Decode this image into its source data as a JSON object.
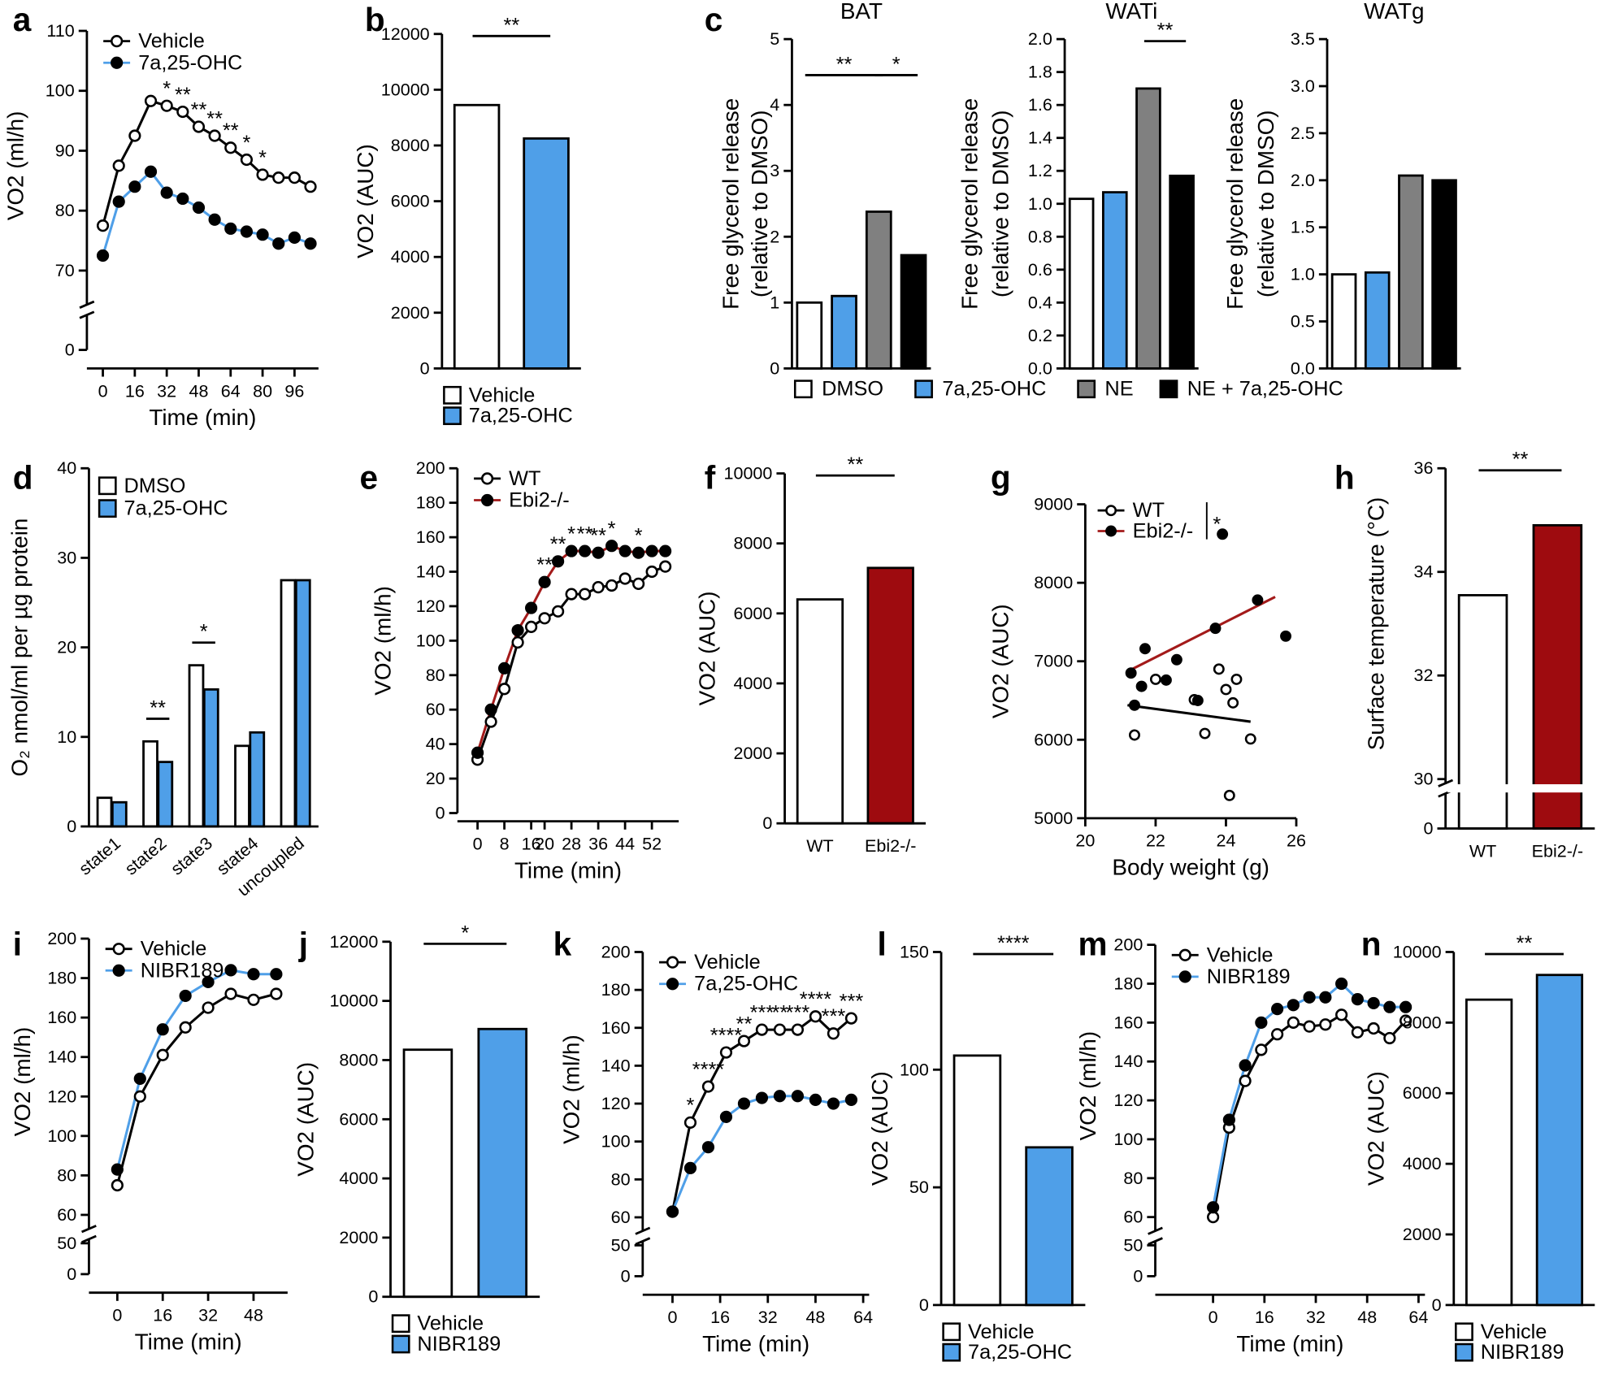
{
  "chart_data": [
    {
      "panel": "a",
      "type": "line",
      "xlabel": "Time (min)",
      "ylabel": "VO2 (ml/h)",
      "x": [
        0,
        8,
        16,
        24,
        32,
        40,
        48,
        56,
        64,
        72,
        80,
        88,
        96,
        104
      ],
      "xlim": [
        -8,
        108
      ],
      "xticks": [
        0,
        16,
        32,
        48,
        64,
        80,
        96
      ],
      "ylim": [
        65,
        110
      ],
      "yticks": [
        0,
        70,
        80,
        90,
        100,
        110
      ],
      "axis_break": true,
      "legend": "top-left",
      "series": [
        {
          "name": "Vehicle",
          "color": "#000000",
          "marker_color": "#ffffff",
          "values": [
            77.5,
            87.5,
            92.5,
            98.3,
            97.5,
            96.5,
            94,
            92.5,
            90.5,
            88.5,
            86,
            85.5,
            85.5,
            84
          ]
        },
        {
          "name": "7a,25-OHC",
          "color": "#4f9fe8",
          "marker_color": "#000000",
          "values": [
            72.5,
            81.5,
            84,
            86.5,
            83,
            82,
            80.5,
            78.5,
            77,
            76.5,
            76,
            74.5,
            75.5,
            74.5
          ]
        }
      ],
      "annotations": [
        {
          "label": "*",
          "index": 4
        },
        {
          "label": "**",
          "index": 5
        },
        {
          "label": "**",
          "index": 6
        },
        {
          "label": "**",
          "index": 7
        },
        {
          "label": "**",
          "index": 8
        },
        {
          "label": "*",
          "index": 9
        },
        {
          "label": "*",
          "index": 10
        }
      ]
    },
    {
      "panel": "b",
      "type": "bar",
      "ylabel": "VO2 (AUC)",
      "categories": [
        "Vehicle",
        "7a,25-OHC"
      ],
      "colors": [
        "#ffffff",
        "#4f9fe8"
      ],
      "values": [
        9450,
        8250
      ],
      "ylim": [
        0,
        12000
      ],
      "yticks": [
        0,
        2000,
        4000,
        6000,
        8000,
        10000,
        12000
      ],
      "legend": "bottom",
      "significance": [
        {
          "label": "**",
          "from": 0,
          "to": 1
        }
      ]
    },
    {
      "panel": "c",
      "type": "bar",
      "categories": [
        "DMSO",
        "7a,25-OHC",
        "NE",
        "NE + 7a,25-OHC"
      ],
      "colors": [
        "#ffffff",
        "#4f9fe8",
        "#808080",
        "#000000"
      ],
      "legend": "bottom",
      "panels": [
        {
          "title": "BAT",
          "ylabel": [
            "Free glycerol release",
            "(relative to DMSO)"
          ],
          "values": [
            1.0,
            1.1,
            2.38,
            1.72
          ],
          "ylim": [
            0,
            5
          ],
          "yticks": [
            0,
            1,
            2,
            3,
            4,
            5
          ],
          "significance": [
            {
              "label": "**",
              "from": 0,
              "to": 2
            },
            {
              "label": "*",
              "from": 2,
              "to": 3
            }
          ]
        },
        {
          "title": "WATi",
          "ylabel": [
            "Free glycerol release",
            "(relative to DMSO)"
          ],
          "values": [
            1.03,
            1.07,
            1.7,
            1.17
          ],
          "ylim": [
            0,
            2
          ],
          "yticks": [
            {
              "value": 0,
              "label": "0.0"
            },
            0.2,
            0.4,
            0.6,
            0.8,
            {
              "value": 1,
              "label": "1.0"
            },
            1.2,
            1.4,
            1.6,
            1.8,
            {
              "value": 2,
              "label": "2.0"
            }
          ],
          "significance": [
            {
              "label": "**",
              "from": 2,
              "to": 3
            }
          ]
        },
        {
          "title": "WATg",
          "ylabel": [
            "Free glycerol release",
            "(relative to DMSO)"
          ],
          "values": [
            1.0,
            1.02,
            2.05,
            2.0
          ],
          "ylim": [
            0,
            3.5
          ],
          "yticks": [
            {
              "value": 0,
              "label": "0.0"
            },
            0.5,
            {
              "value": 1,
              "label": "1.0"
            },
            1.5,
            {
              "value": 2,
              "label": "2.0"
            },
            2.5,
            {
              "value": 3,
              "label": "3.0"
            },
            3.5
          ]
        }
      ]
    },
    {
      "panel": "d",
      "type": "grouped-bar",
      "ylabel": "O₂ nmol/ml per µg protein",
      "categories": [
        "state1",
        "state2",
        "state3",
        "state4",
        "uncoupled"
      ],
      "series": [
        {
          "name": "DMSO",
          "color": "#ffffff",
          "values": [
            3.2,
            9.5,
            18,
            9,
            27.5
          ]
        },
        {
          "name": "7a,25-OHC",
          "color": "#4f9fe8",
          "values": [
            2.7,
            7.2,
            15.3,
            10.5,
            27.5
          ]
        }
      ],
      "ylim": [
        0,
        40
      ],
      "yticks": [
        0,
        10,
        20,
        30,
        40
      ],
      "legend": "top-left",
      "significance": [
        {
          "label": "**",
          "category": 1
        },
        {
          "label": "*",
          "category": 2
        }
      ]
    },
    {
      "panel": "e",
      "type": "line",
      "xlabel": "Time (min)",
      "ylabel": "VO2 (ml/h)",
      "x": [
        0,
        4,
        8,
        12,
        16,
        20,
        24,
        28,
        32,
        36,
        40,
        44,
        48,
        52,
        56
      ],
      "xlim": [
        -6,
        60
      ],
      "xticks": [
        0,
        8,
        16,
        20,
        28,
        36,
        44,
        52
      ],
      "ylim": [
        0,
        200
      ],
      "yticks": [
        0,
        20,
        40,
        60,
        80,
        100,
        120,
        140,
        160,
        180,
        200
      ],
      "legend": "top-left",
      "series": [
        {
          "name": "WT",
          "color": "#000000",
          "marker_color": "#ffffff",
          "values": [
            31,
            53,
            72,
            99,
            108,
            113,
            117,
            127,
            127,
            131,
            132,
            136,
            133,
            140,
            143
          ]
        },
        {
          "name": "Ebi2-/-",
          "color": "#a31a1a",
          "marker_color": "#000000",
          "values": [
            35,
            60,
            84,
            106,
            119,
            134,
            146,
            152,
            152,
            151,
            155,
            152,
            151,
            152,
            152
          ]
        }
      ],
      "annotations": [
        {
          "label": "**",
          "index": 5
        },
        {
          "label": "**",
          "index": 6
        },
        {
          "label": "*",
          "index": 7
        },
        {
          "label": "**",
          "index": 8
        },
        {
          "label": "**",
          "index": 9
        },
        {
          "label": "*",
          "index": 10
        },
        {
          "label": "*",
          "index": 12
        }
      ]
    },
    {
      "panel": "f",
      "type": "bar",
      "ylabel": "VO2 (AUC)",
      "categories": [
        "WT",
        "Ebi2-/-"
      ],
      "colors": [
        "#ffffff",
        "#9e0b0f"
      ],
      "values": [
        6400,
        7300
      ],
      "ylim": [
        0,
        10000
      ],
      "yticks": [
        0,
        2000,
        4000,
        6000,
        8000,
        10000
      ],
      "significance": [
        {
          "label": "**",
          "from": 0,
          "to": 1
        }
      ]
    },
    {
      "panel": "g",
      "type": "scatter",
      "xlabel": "Body weight (g)",
      "ylabel": "VO2 (AUC)",
      "xlim": [
        20,
        26
      ],
      "xticks": [
        20,
        22,
        24,
        26
      ],
      "ylim": [
        5000,
        9000
      ],
      "yticks": [
        5000,
        6000,
        7000,
        8000,
        9000
      ],
      "legend": "top-left",
      "legend_note": "*",
      "series": [
        {
          "name": "WT",
          "color": "#000000",
          "marker_color": "#ffffff",
          "x": [
            21.4,
            22.0,
            23.1,
            23.4,
            23.8,
            24.0,
            24.2,
            24.3,
            24.7,
            24.1
          ],
          "y": [
            6060,
            6770,
            6510,
            6080,
            6900,
            6640,
            6470,
            6770,
            6010,
            5290
          ],
          "fit": [
            [
              21.2,
              6440
            ],
            [
              24.7,
              6230
            ]
          ]
        },
        {
          "name": "Ebi2-/-",
          "color": "#a31a1a",
          "marker_color": "#000000",
          "x": [
            21.3,
            21.6,
            21.7,
            22.3,
            22.6,
            23.2,
            23.7,
            23.9,
            24.9,
            25.7,
            21.4
          ],
          "y": [
            6850,
            6680,
            7160,
            6760,
            7020,
            6500,
            7420,
            8620,
            7780,
            7320,
            6440
          ],
          "fit": [
            [
              21.2,
              6870
            ],
            [
              25.4,
              7820
            ]
          ]
        }
      ]
    },
    {
      "panel": "h",
      "type": "bar",
      "ylabel": "Surface temperature (°C)",
      "categories": [
        "WT",
        "Ebi2-/-"
      ],
      "colors": [
        "#ffffff",
        "#9e0b0f"
      ],
      "values": [
        33.55,
        34.9
      ],
      "ylim": [
        30,
        36
      ],
      "yticks": [
        0,
        30,
        32,
        34,
        36
      ],
      "axis_break": true,
      "significance": [
        {
          "label": "**",
          "from": 0,
          "to": 1
        }
      ]
    },
    {
      "panel": "i",
      "type": "line",
      "xlabel": "Time (min)",
      "ylabel": "VO2 (ml/h)",
      "x": [
        0,
        8,
        16,
        24,
        32,
        40,
        48,
        56
      ],
      "xlim": [
        -10,
        60
      ],
      "xticks": [
        0,
        16,
        32,
        48
      ],
      "ylim": [
        55,
        200
      ],
      "yticks": [
        0,
        50,
        60,
        80,
        100,
        120,
        140,
        160,
        180,
        200
      ],
      "axis_break": true,
      "legend": "top-left",
      "series": [
        {
          "name": "Vehicle",
          "color": "#000000",
          "marker_color": "#ffffff",
          "values": [
            75,
            120,
            141,
            155,
            165,
            172,
            169,
            172
          ]
        },
        {
          "name": "NIBR189",
          "color": "#4f9fe8",
          "marker_color": "#000000",
          "values": [
            83,
            129,
            154,
            171,
            178,
            184,
            182,
            182
          ]
        }
      ]
    },
    {
      "panel": "j",
      "type": "bar",
      "ylabel": "VO2 (AUC)",
      "categories": [
        "Vehicle",
        "NIBR189"
      ],
      "colors": [
        "#ffffff",
        "#4f9fe8"
      ],
      "values": [
        8350,
        9050
      ],
      "ylim": [
        0,
        12000
      ],
      "yticks": [
        0,
        2000,
        4000,
        6000,
        8000,
        10000,
        12000
      ],
      "legend": "bottom",
      "significance": [
        {
          "label": "*",
          "from": 0,
          "to": 1
        }
      ]
    },
    {
      "panel": "k",
      "type": "line",
      "xlabel": "Time (min)",
      "ylabel": "VO2 (ml/h)",
      "x": [
        0,
        6,
        12,
        18,
        24,
        30,
        36,
        42,
        48,
        54,
        60
      ],
      "xlim": [
        -10,
        66
      ],
      "xticks": [
        0,
        16,
        32,
        48,
        64
      ],
      "ylim": [
        55,
        200
      ],
      "yticks": [
        0,
        50,
        60,
        80,
        100,
        120,
        140,
        160,
        180,
        200
      ],
      "axis_break": true,
      "legend": "top-left",
      "series": [
        {
          "name": "Vehicle",
          "color": "#000000",
          "marker_color": "#ffffff",
          "values": [
            63,
            110,
            129,
            147,
            153,
            159,
            159,
            159,
            166,
            157,
            165
          ]
        },
        {
          "name": "7a,25-OHC",
          "color": "#4f9fe8",
          "marker_color": "#000000",
          "values": [
            63,
            86,
            97,
            113,
            120,
            123,
            124,
            124,
            122,
            120,
            122
          ]
        }
      ],
      "annotations": [
        {
          "label": "*",
          "index": 1
        },
        {
          "label": "****",
          "index": 2
        },
        {
          "label": "****",
          "index": 3
        },
        {
          "label": "**",
          "index": 4
        },
        {
          "label": "***",
          "index": 5
        },
        {
          "label": "**",
          "index": 6
        },
        {
          "label": "***",
          "index": 7
        },
        {
          "label": "****",
          "index": 8
        },
        {
          "label": "***",
          "index": 9
        },
        {
          "label": "***",
          "index": 10
        }
      ]
    },
    {
      "panel": "l",
      "type": "bar",
      "ylabel": "VO2 (AUC)",
      "categories": [
        "Vehicle",
        "7a,25-OHC"
      ],
      "colors": [
        "#ffffff",
        "#4f9fe8"
      ],
      "values": [
        106,
        67
      ],
      "ylim": [
        0,
        150
      ],
      "yticks": [
        0,
        50,
        100,
        150
      ],
      "legend": "bottom",
      "significance": [
        {
          "label": "****",
          "from": 0,
          "to": 1
        }
      ]
    },
    {
      "panel": "m",
      "type": "line",
      "xlabel": "Time (min)",
      "ylabel": "VO2 (ml/h)",
      "x": [
        0,
        5,
        10,
        15,
        20,
        25,
        30,
        35,
        40,
        45,
        50,
        55,
        60
      ],
      "xlim": [
        -18,
        66
      ],
      "xticks": [
        0,
        16,
        32,
        48,
        64
      ],
      "ylim": [
        55,
        200
      ],
      "yticks": [
        0,
        50,
        60,
        80,
        100,
        120,
        140,
        160,
        180,
        200
      ],
      "axis_break": true,
      "legend": "top-left",
      "series": [
        {
          "name": "Vehicle",
          "color": "#000000",
          "marker_color": "#ffffff",
          "values": [
            60,
            106,
            130,
            146,
            154,
            160,
            158,
            159,
            164,
            155,
            157,
            152,
            161
          ]
        },
        {
          "name": "NIBR189",
          "color": "#4f9fe8",
          "marker_color": "#000000",
          "values": [
            65,
            110,
            138,
            160,
            167,
            169,
            173,
            173,
            180,
            172,
            170,
            168,
            168
          ]
        }
      ]
    },
    {
      "panel": "n",
      "type": "bar",
      "ylabel": "VO2 (AUC)",
      "categories": [
        "Vehicle",
        "NIBR189"
      ],
      "colors": [
        "#ffffff",
        "#4f9fe8"
      ],
      "values": [
        8650,
        9350
      ],
      "ylim": [
        0,
        10000
      ],
      "yticks": [
        0,
        2000,
        4000,
        6000,
        8000,
        10000
      ],
      "legend": "bottom",
      "significance": [
        {
          "label": "**",
          "from": 0,
          "to": 1
        }
      ]
    }
  ]
}
